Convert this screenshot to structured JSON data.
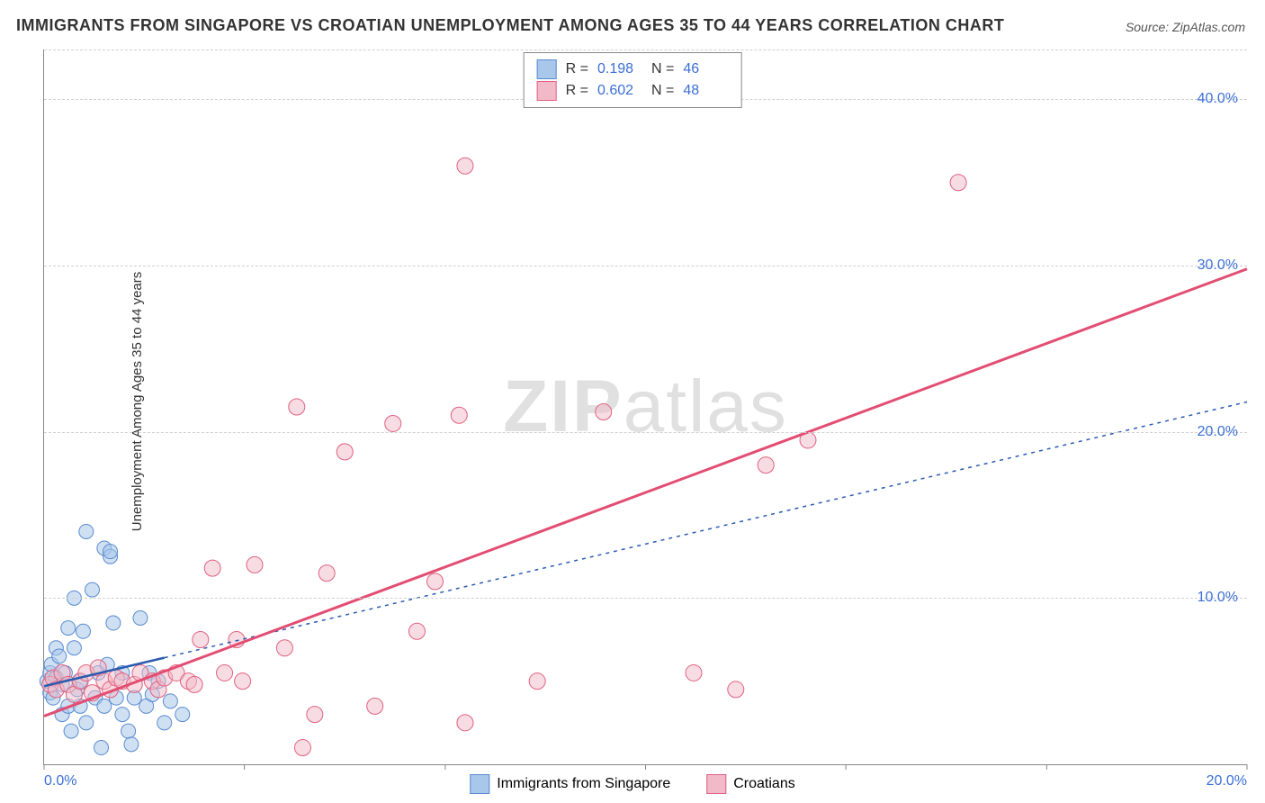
{
  "title": "IMMIGRANTS FROM SINGAPORE VS CROATIAN UNEMPLOYMENT AMONG AGES 35 TO 44 YEARS CORRELATION CHART",
  "source": "Source: ZipAtlas.com",
  "ylabel": "Unemployment Among Ages 35 to 44 years",
  "watermark_a": "ZIP",
  "watermark_b": "atlas",
  "chart": {
    "type": "scatter",
    "xlim": [
      0,
      20
    ],
    "ylim": [
      0,
      43
    ],
    "xticks": [
      0,
      3.33,
      6.67,
      10,
      13.33,
      16.67,
      20
    ],
    "xtick_labels": [
      "0.0%",
      "",
      "",
      "",
      "",
      "",
      "20.0%"
    ],
    "yticks": [
      10,
      20,
      30,
      40
    ],
    "ytick_labels": [
      "10.0%",
      "20.0%",
      "30.0%",
      "40.0%"
    ],
    "grid_color": "#d0d0d0",
    "background_color": "#ffffff",
    "axis_color": "#888888",
    "tick_label_color": "#3b6fd6"
  },
  "series": [
    {
      "name": "Immigrants from Singapore",
      "color_fill": "#a8c7ea",
      "color_stroke": "#5a8bd0",
      "fill_opacity": 0.55,
      "marker_radius": 8,
      "R": "0.198",
      "N": "46",
      "trend": {
        "x1": 0,
        "y1": 4.7,
        "x2": 20,
        "y2": 21.8,
        "solid_until_x": 2.0,
        "color": "#2b5bb0",
        "width": 2.5,
        "dash": "4,5"
      },
      "points": [
        [
          0.05,
          5.0
        ],
        [
          0.1,
          4.3
        ],
        [
          0.1,
          5.5
        ],
        [
          0.12,
          6.0
        ],
        [
          0.15,
          4.0
        ],
        [
          0.2,
          7.0
        ],
        [
          0.2,
          5.2
        ],
        [
          0.25,
          6.5
        ],
        [
          0.3,
          3.0
        ],
        [
          0.3,
          4.8
        ],
        [
          0.35,
          5.5
        ],
        [
          0.4,
          8.2
        ],
        [
          0.4,
          3.5
        ],
        [
          0.45,
          2.0
        ],
        [
          0.5,
          7.0
        ],
        [
          0.5,
          10.0
        ],
        [
          0.55,
          4.5
        ],
        [
          0.6,
          3.5
        ],
        [
          0.6,
          5.0
        ],
        [
          0.65,
          8.0
        ],
        [
          0.7,
          2.5
        ],
        [
          0.7,
          14.0
        ],
        [
          0.8,
          10.5
        ],
        [
          0.85,
          4.0
        ],
        [
          0.9,
          5.5
        ],
        [
          0.95,
          1.0
        ],
        [
          1.0,
          3.5
        ],
        [
          1.0,
          13.0
        ],
        [
          1.05,
          6.0
        ],
        [
          1.1,
          12.5
        ],
        [
          1.1,
          12.8
        ],
        [
          1.2,
          4.0
        ],
        [
          1.3,
          3.0
        ],
        [
          1.3,
          5.5
        ],
        [
          1.4,
          2.0
        ],
        [
          1.45,
          1.2
        ],
        [
          1.5,
          4.0
        ],
        [
          1.6,
          8.8
        ],
        [
          1.7,
          3.5
        ],
        [
          1.75,
          5.5
        ],
        [
          1.8,
          4.2
        ],
        [
          1.9,
          5.0
        ],
        [
          2.0,
          2.5
        ],
        [
          2.1,
          3.8
        ],
        [
          2.3,
          3.0
        ],
        [
          1.15,
          8.5
        ]
      ]
    },
    {
      "name": "Croatians",
      "color_fill": "#f2b9c8",
      "color_stroke": "#e0617f",
      "fill_opacity": 0.5,
      "marker_radius": 9,
      "R": "0.602",
      "N": "48",
      "trend": {
        "x1": 0,
        "y1": 2.9,
        "x2": 20,
        "y2": 29.8,
        "color": "#e34d72",
        "width": 3,
        "dash": "none"
      },
      "points": [
        [
          0.1,
          4.8
        ],
        [
          0.15,
          5.2
        ],
        [
          0.2,
          4.5
        ],
        [
          0.3,
          5.5
        ],
        [
          0.4,
          4.8
        ],
        [
          0.5,
          4.2
        ],
        [
          0.6,
          5.0
        ],
        [
          0.7,
          5.5
        ],
        [
          0.8,
          4.3
        ],
        [
          0.9,
          5.8
        ],
        [
          1.0,
          5.0
        ],
        [
          1.1,
          4.5
        ],
        [
          1.2,
          5.2
        ],
        [
          1.3,
          5.0
        ],
        [
          1.5,
          4.8
        ],
        [
          1.6,
          5.5
        ],
        [
          1.8,
          5.0
        ],
        [
          1.9,
          4.5
        ],
        [
          2.0,
          5.2
        ],
        [
          2.2,
          5.5
        ],
        [
          2.4,
          5.0
        ],
        [
          2.5,
          4.8
        ],
        [
          2.6,
          7.5
        ],
        [
          2.8,
          11.8
        ],
        [
          3.0,
          5.5
        ],
        [
          3.2,
          7.5
        ],
        [
          3.3,
          5.0
        ],
        [
          3.5,
          12.0
        ],
        [
          4.0,
          7.0
        ],
        [
          4.2,
          21.5
        ],
        [
          4.3,
          1.0
        ],
        [
          4.5,
          3.0
        ],
        [
          4.7,
          11.5
        ],
        [
          5.0,
          18.8
        ],
        [
          5.5,
          3.5
        ],
        [
          5.8,
          20.5
        ],
        [
          6.2,
          8.0
        ],
        [
          6.5,
          11.0
        ],
        [
          6.9,
          21.0
        ],
        [
          7.0,
          2.5
        ],
        [
          7.0,
          36.0
        ],
        [
          8.2,
          5.0
        ],
        [
          9.3,
          21.2
        ],
        [
          10.8,
          5.5
        ],
        [
          11.5,
          4.5
        ],
        [
          12.0,
          18.0
        ],
        [
          12.7,
          19.5
        ],
        [
          15.2,
          35.0
        ]
      ]
    }
  ],
  "stats_legend": {
    "R_label": "R  =",
    "N_label": "N  ="
  },
  "bottom_legend": {
    "items": [
      "Immigrants from Singapore",
      "Croatians"
    ]
  }
}
